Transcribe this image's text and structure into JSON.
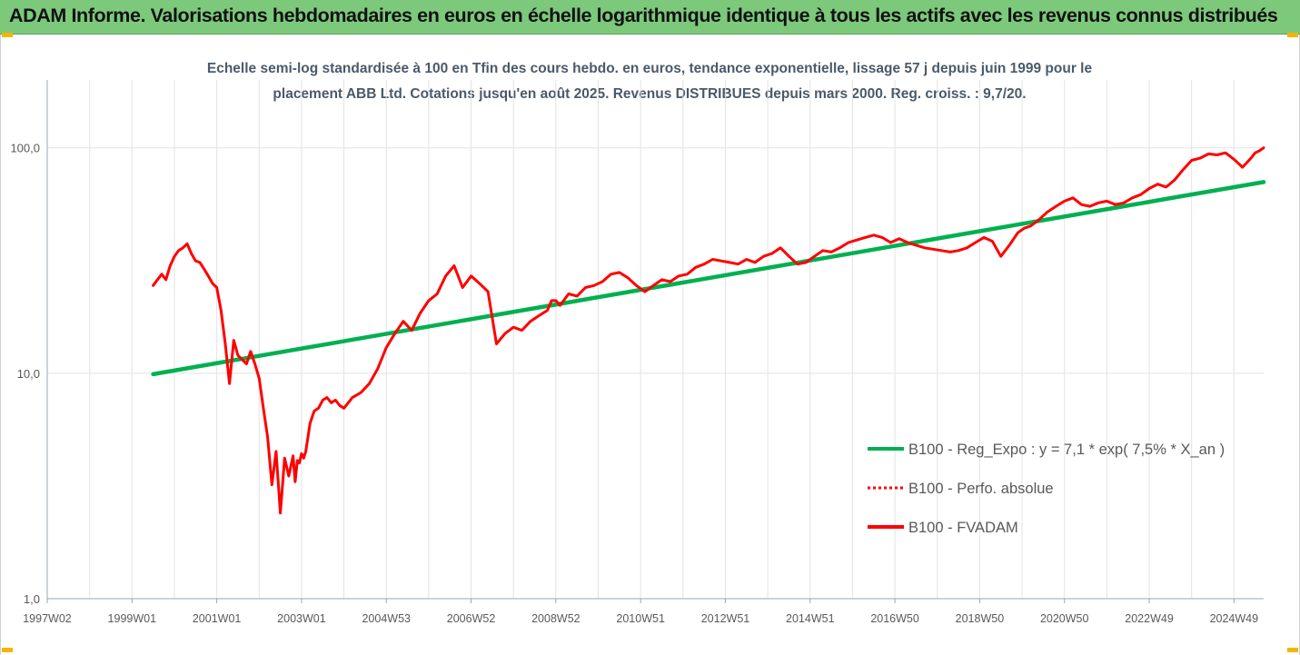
{
  "header": {
    "title": "ADAM Informe. Valorisations hebdomadaires en euros en échelle logarithmique identique à tous les actifs avec les revenus connus distribués"
  },
  "chart_data": {
    "type": "line",
    "title_line1": "Echelle semi-log standardisée à 100 en Tfin des cours hebdo. en euros, tendance exponentielle, lissage 57 j depuis juin 1999 pour le",
    "title_line2": "placement ABB Ltd. Cotations jusqu'en août 2025. Revenus DISTRIBUES depuis mars 2000. Reg. croiss. : 9,7/20.",
    "y_scale": "log",
    "ylim": [
      1,
      200
    ],
    "y_ticks": [
      {
        "value": 1,
        "label": "1,0"
      },
      {
        "value": 10,
        "label": "10,0"
      },
      {
        "value": 100,
        "label": "100,0"
      }
    ],
    "xlim": [
      1997.0,
      2025.7
    ],
    "x_ticks": [
      {
        "value": 1997.0,
        "label": "1997W02"
      },
      {
        "value": 1999.0,
        "label": "1999W01"
      },
      {
        "value": 2001.0,
        "label": "2001W01"
      },
      {
        "value": 2003.0,
        "label": "2003W01"
      },
      {
        "value": 2005.0,
        "label": "2004W53"
      },
      {
        "value": 2007.0,
        "label": "2006W52"
      },
      {
        "value": 2009.0,
        "label": "2008W52"
      },
      {
        "value": 2011.0,
        "label": "2010W51"
      },
      {
        "value": 2013.0,
        "label": "2012W51"
      },
      {
        "value": 2015.0,
        "label": "2014W51"
      },
      {
        "value": 2017.0,
        "label": "2016W50"
      },
      {
        "value": 2019.0,
        "label": "2018W50"
      },
      {
        "value": 2021.0,
        "label": "2020W50"
      },
      {
        "value": 2023.0,
        "label": "2022W49"
      },
      {
        "value": 2025.0,
        "label": "2024W49"
      }
    ],
    "grid": "vertical",
    "legend_position": "right",
    "series": [
      {
        "name": "B100 - Reg_Expo : y = 7,1 * exp( 7,5% *  X_an )",
        "color": "#00b050",
        "style": "solid",
        "x": [
          1999.5,
          2025.7
        ],
        "y": [
          9.9,
          70.5
        ]
      },
      {
        "name": "B100 - Perfo. absolue",
        "color": "#ff0000",
        "style": "dotted",
        "x": [],
        "y": []
      },
      {
        "name": "B100 - FVADAM",
        "color": "#ff0000",
        "style": "solid",
        "x": [
          1999.5,
          1999.6,
          1999.7,
          1999.8,
          1999.9,
          2000.0,
          2000.1,
          2000.2,
          2000.3,
          2000.4,
          2000.5,
          2000.6,
          2000.7,
          2000.8,
          2000.9,
          2001.0,
          2001.1,
          2001.2,
          2001.3,
          2001.4,
          2001.5,
          2001.6,
          2001.7,
          2001.8,
          2001.9,
          2002.0,
          2002.1,
          2002.2,
          2002.3,
          2002.4,
          2002.5,
          2002.6,
          2002.7,
          2002.8,
          2002.85,
          2002.9,
          2002.95,
          2003.0,
          2003.05,
          2003.1,
          2003.2,
          2003.3,
          2003.4,
          2003.5,
          2003.6,
          2003.7,
          2003.8,
          2003.9,
          2004.0,
          2004.2,
          2004.4,
          2004.6,
          2004.8,
          2005.0,
          2005.2,
          2005.4,
          2005.6,
          2005.8,
          2006.0,
          2006.2,
          2006.4,
          2006.6,
          2006.8,
          2007.0,
          2007.2,
          2007.4,
          2007.6,
          2007.8,
          2008.0,
          2008.2,
          2008.4,
          2008.6,
          2008.8,
          2008.9,
          2009.0,
          2009.1,
          2009.3,
          2009.5,
          2009.7,
          2009.9,
          2010.1,
          2010.3,
          2010.5,
          2010.7,
          2010.9,
          2011.1,
          2011.3,
          2011.5,
          2011.7,
          2011.9,
          2012.1,
          2012.3,
          2012.5,
          2012.7,
          2012.9,
          2013.1,
          2013.3,
          2013.5,
          2013.7,
          2013.9,
          2014.1,
          2014.3,
          2014.5,
          2014.7,
          2014.9,
          2015.1,
          2015.3,
          2015.5,
          2015.7,
          2015.9,
          2016.1,
          2016.3,
          2016.5,
          2016.7,
          2016.9,
          2017.1,
          2017.3,
          2017.5,
          2017.7,
          2017.9,
          2018.1,
          2018.3,
          2018.5,
          2018.7,
          2018.9,
          2019.1,
          2019.3,
          2019.5,
          2019.7,
          2019.9,
          2020.05,
          2020.2,
          2020.4,
          2020.6,
          2020.8,
          2021.0,
          2021.2,
          2021.4,
          2021.6,
          2021.8,
          2022.0,
          2022.2,
          2022.4,
          2022.6,
          2022.8,
          2023.0,
          2023.2,
          2023.4,
          2023.6,
          2023.8,
          2024.0,
          2024.2,
          2024.4,
          2024.6,
          2024.8,
          2025.0,
          2025.2,
          2025.4,
          2025.5,
          2025.6,
          2025.7
        ],
        "y": [
          24.5,
          26,
          27.5,
          26,
          30,
          33,
          35,
          36,
          37.5,
          34,
          31.5,
          31,
          29,
          27,
          25,
          24,
          19,
          13.5,
          9,
          14,
          12,
          11.5,
          11,
          12.5,
          11,
          9.5,
          7,
          5.2,
          3.2,
          4.5,
          2.4,
          4.2,
          3.5,
          4.3,
          3.3,
          4.1,
          4.0,
          4.4,
          4.2,
          4.5,
          6.0,
          6.8,
          7.0,
          7.6,
          7.8,
          7.4,
          7.6,
          7.2,
          7.0,
          7.8,
          8.2,
          9.0,
          10.5,
          13.0,
          15.0,
          17.0,
          15.5,
          18.5,
          21.0,
          22.5,
          27.0,
          30.0,
          24.0,
          27.0,
          25.0,
          23.0,
          13.5,
          15.0,
          16.0,
          15.5,
          17.0,
          18.0,
          19.0,
          21.0,
          21.0,
          20.0,
          22.5,
          22.0,
          24.0,
          24.5,
          25.5,
          27.5,
          28.0,
          26.5,
          24.5,
          23.0,
          24.5,
          26.0,
          25.5,
          27.0,
          27.5,
          29.5,
          30.5,
          32.0,
          31.5,
          31.0,
          30.5,
          32.0,
          31.0,
          33.0,
          34.0,
          36.0,
          33.0,
          30.5,
          31.0,
          33.0,
          35.0,
          34.5,
          36.0,
          38.0,
          39.0,
          40.0,
          41.0,
          40.0,
          38.0,
          39.5,
          38.0,
          37.0,
          36.0,
          35.5,
          35.0,
          34.5,
          35.0,
          36.0,
          38.0,
          40.0,
          38.5,
          33.0,
          37.0,
          42.0,
          44.0,
          45.0,
          48.0,
          52.0,
          55.0,
          58.0,
          60.0,
          56.0,
          55.0,
          57.0,
          58.0,
          56.0,
          57.0,
          60.0,
          62.0,
          66.0,
          69.0,
          67.0,
          72.0,
          80.0,
          88.0,
          90.0,
          94.0,
          93.0,
          95.0,
          89.0,
          82.0,
          90.0,
          95.0,
          97.0,
          100.0
        ]
      }
    ]
  }
}
